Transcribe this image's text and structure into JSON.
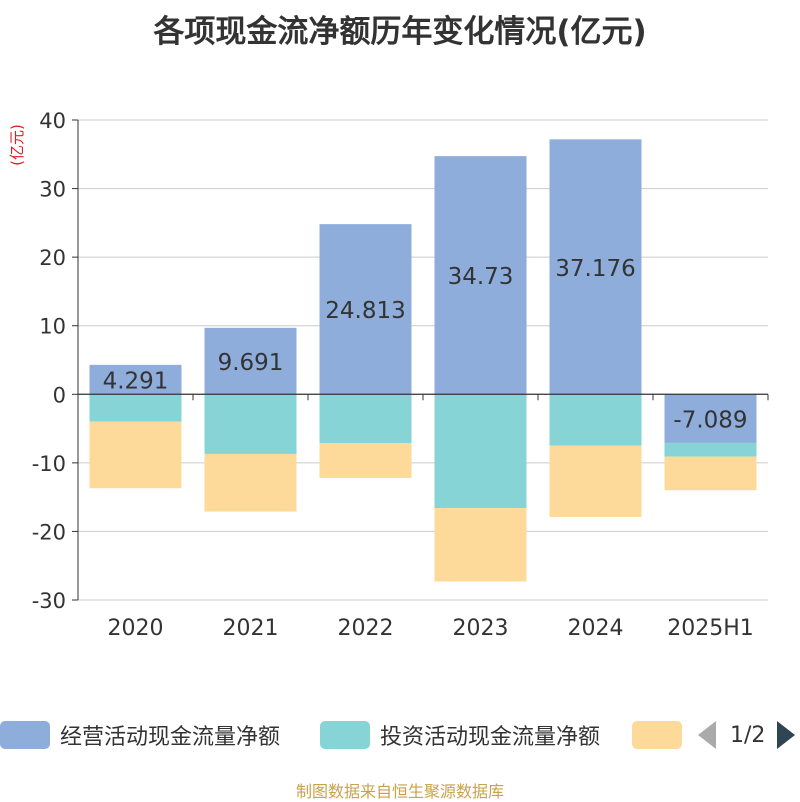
{
  "title": "各项现金流净额历年变化情况(亿元)",
  "source": "制图数据来自恒生聚源数据库",
  "legend_pager": "1/2",
  "colors": {
    "operating": "#8eadda",
    "investing": "#86d4d6",
    "financing": "#fdd99a",
    "axis": "#333333",
    "grid": "#cccccc",
    "unit": "#e02020"
  },
  "chart_data": {
    "type": "bar",
    "stacked": true,
    "categories": [
      "2020",
      "2021",
      "2022",
      "2023",
      "2024",
      "2025H1"
    ],
    "ylabel": "(亿元)",
    "ylim": [
      -30,
      40
    ],
    "yticks": [
      40,
      30,
      20,
      10,
      0,
      -10,
      -20,
      -30
    ],
    "grid": true,
    "legend_position": "bottom",
    "series": [
      {
        "name": "经营活动现金流量净额",
        "values": [
          4.291,
          9.691,
          24.813,
          34.73,
          37.176,
          -7.089
        ],
        "labels": [
          "4.291",
          "9.691",
          "24.813",
          "34.73",
          "37.176",
          "-7.089"
        ]
      },
      {
        "name": "投资活动现金流量净额",
        "values": [
          -4.0,
          -8.7,
          -7.1,
          -16.6,
          -7.5,
          -2.0
        ]
      },
      {
        "values": [
          -9.7,
          -8.4,
          -5.1,
          -10.7,
          -10.4,
          -4.9
        ]
      }
    ]
  }
}
